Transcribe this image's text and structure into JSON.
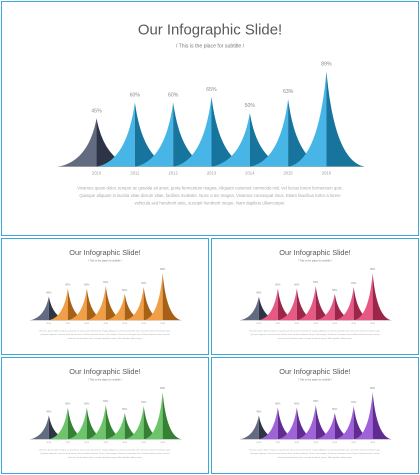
{
  "slide": {
    "title": "Our Infographic Slide!",
    "subtitle": "/ This is the place for subtitle /",
    "body_lines": [
      "Vivamus quam dolor, tempor ac gravida sit amet, porta fermentum magna. Aliquam euismod commodo nisl, vel luctus lorem fermentum quis.",
      "Quisque aliquam in lacinia vitae dictum vitae, facilisis molestie. Nunc a leo magna. Vivamus consequat risus. Etiam faucibus tortor a lorem",
      "vehicula sed hendrerit ante, suscipit hendrerit neque. Nam dapibus ullamcorper."
    ]
  },
  "colors": {
    "first_peak": "#3f4a63",
    "blue": "#1fa6e0",
    "orange": "#ee8a1f",
    "pink": "#e0356a",
    "green": "#4cb84a",
    "purple": "#8a3fd1",
    "baseline": "#9a9a9a"
  },
  "chart_data": [
    {
      "type": "area",
      "variant": "peaks",
      "theme": "blue",
      "x": [
        "2010",
        "2011",
        "2012",
        "2013",
        "2014",
        "2015",
        "2016"
      ],
      "values": [
        45,
        60,
        60,
        65,
        50,
        63,
        89
      ],
      "labels": [
        "45%",
        "60%",
        "60%",
        "65%",
        "50%",
        "63%",
        "89%"
      ]
    },
    {
      "type": "area",
      "variant": "peaks",
      "theme": "orange",
      "x": [
        "2010",
        "2011",
        "2012",
        "2013",
        "2014",
        "2015",
        "2016"
      ],
      "values": [
        45,
        60,
        60,
        65,
        50,
        63,
        89
      ],
      "labels": [
        "45%",
        "60%",
        "60%",
        "65%",
        "50%",
        "63%",
        "89%"
      ]
    },
    {
      "type": "area",
      "variant": "peaks",
      "theme": "pink",
      "x": [
        "2010",
        "2011",
        "2012",
        "2013",
        "2014",
        "2015",
        "2016"
      ],
      "values": [
        45,
        60,
        60,
        65,
        50,
        63,
        89
      ],
      "labels": [
        "45%",
        "60%",
        "60%",
        "65%",
        "50%",
        "63%",
        "89%"
      ]
    },
    {
      "type": "area",
      "variant": "peaks",
      "theme": "green",
      "x": [
        "2010",
        "2011",
        "2012",
        "2013",
        "2014",
        "2015",
        "2016"
      ],
      "values": [
        45,
        60,
        60,
        65,
        50,
        63,
        89
      ],
      "labels": [
        "45%",
        "60%",
        "60%",
        "65%",
        "50%",
        "63%",
        "89%"
      ]
    },
    {
      "type": "area",
      "variant": "peaks",
      "theme": "purple",
      "x": [
        "2010",
        "2011",
        "2012",
        "2013",
        "2014",
        "2015",
        "2016"
      ],
      "values": [
        45,
        60,
        60,
        65,
        50,
        63,
        89
      ],
      "labels": [
        "45%",
        "60%",
        "60%",
        "65%",
        "50%",
        "63%",
        "89%"
      ]
    }
  ]
}
